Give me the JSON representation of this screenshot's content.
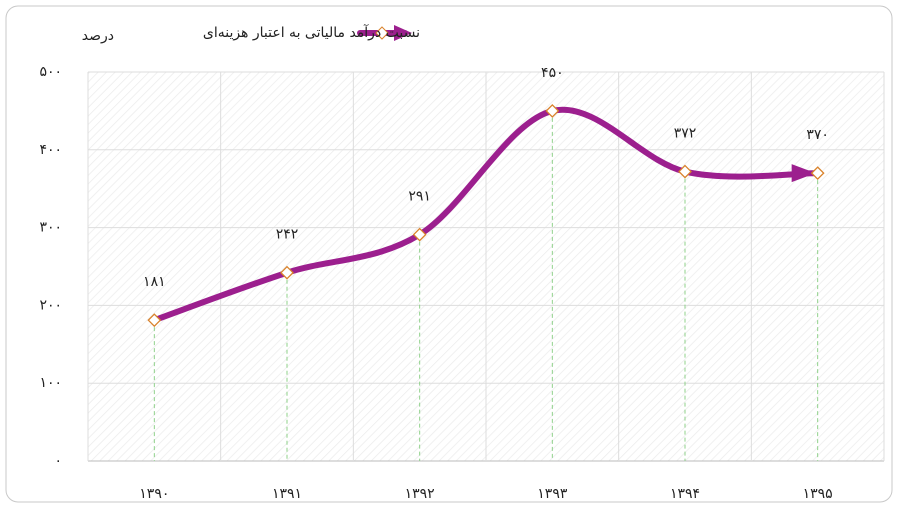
{
  "chart_data": {
    "type": "line",
    "title": "نسبت درآمد مالیاتی به اعتبار هزینه‌ای",
    "y_label": "درصد",
    "categories": [
      "۱۳۹۰",
      "۱۳۹۱",
      "۱۳۹۲",
      "۱۳۹۳",
      "۱۳۹۴",
      "۱۳۹۵"
    ],
    "series": [
      {
        "name": "نسبت درآمد مالیاتی به اعتبار هزینه‌ای",
        "color": "#9c1f8e",
        "values": [
          181,
          242,
          291,
          450,
          372,
          370
        ],
        "value_labels": [
          "۱۸۱",
          "۲۴۲",
          "۲۹۱",
          "۴۵۰",
          "۳۷۲",
          "۳۷۰"
        ]
      }
    ],
    "ylim": [
      0,
      500
    ],
    "yticks": [
      {
        "value": 0,
        "label": "۰"
      },
      {
        "value": 100,
        "label": "۱۰۰"
      },
      {
        "value": 200,
        "label": "۲۰۰"
      },
      {
        "value": 300,
        "label": "۳۰۰"
      },
      {
        "value": 400,
        "label": "۴۰۰"
      },
      {
        "value": 500,
        "label": "۵۰۰"
      }
    ],
    "grid": true,
    "legend": "top"
  }
}
